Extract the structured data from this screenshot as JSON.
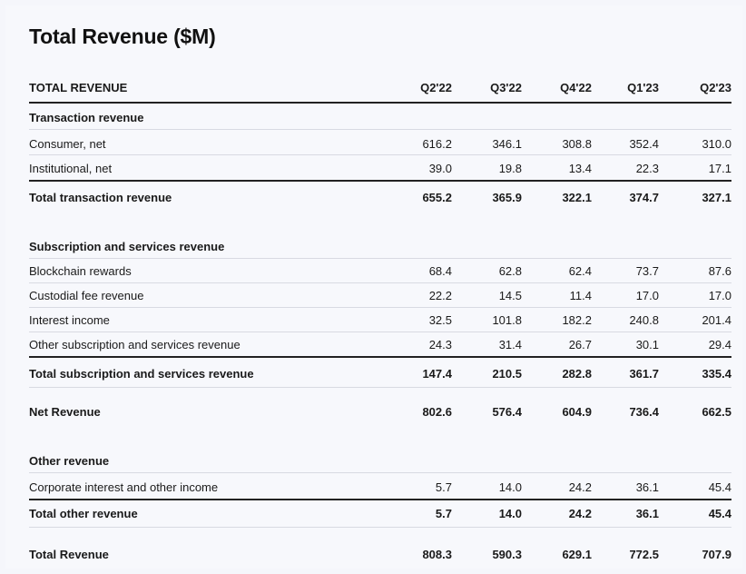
{
  "title": "Total Revenue ($M)",
  "header": {
    "label": "TOTAL REVENUE",
    "periods": [
      "Q2'22",
      "Q3'22",
      "Q4'22",
      "Q1'23",
      "Q2'23"
    ]
  },
  "sections": {
    "transaction": {
      "heading": "Transaction revenue",
      "rows": [
        {
          "label": "Consumer, net",
          "values": [
            "616.2",
            "346.1",
            "308.8",
            "352.4",
            "310.0"
          ]
        },
        {
          "label": "Institutional, net",
          "values": [
            "39.0",
            "19.8",
            "13.4",
            "22.3",
            "17.1"
          ]
        }
      ],
      "total": {
        "label": "Total transaction revenue",
        "values": [
          "655.2",
          "365.9",
          "322.1",
          "374.7",
          "327.1"
        ]
      }
    },
    "subscription": {
      "heading": "Subscription and services revenue",
      "rows": [
        {
          "label": "Blockchain rewards",
          "values": [
            "68.4",
            "62.8",
            "62.4",
            "73.7",
            "87.6"
          ]
        },
        {
          "label": "Custodial fee revenue",
          "values": [
            "22.2",
            "14.5",
            "11.4",
            "17.0",
            "17.0"
          ]
        },
        {
          "label": "Interest income",
          "values": [
            "32.5",
            "101.8",
            "182.2",
            "240.8",
            "201.4"
          ]
        },
        {
          "label": "Other subscription and services revenue",
          "values": [
            "24.3",
            "31.4",
            "26.7",
            "30.1",
            "29.4"
          ]
        }
      ],
      "total": {
        "label": "Total subscription and services revenue",
        "values": [
          "147.4",
          "210.5",
          "282.8",
          "361.7",
          "335.4"
        ]
      }
    },
    "net": {
      "label": "Net Revenue",
      "values": [
        "802.6",
        "576.4",
        "604.9",
        "736.4",
        "662.5"
      ]
    },
    "other": {
      "heading": "Other revenue",
      "rows": [
        {
          "label": "Corporate interest and other income",
          "values": [
            "5.7",
            "14.0",
            "24.2",
            "36.1",
            "45.4"
          ]
        }
      ],
      "total": {
        "label": "Total other revenue",
        "values": [
          "5.7",
          "14.0",
          "24.2",
          "36.1",
          "45.4"
        ]
      }
    },
    "grand_total": {
      "label": "Total Revenue",
      "values": [
        "808.3",
        "590.3",
        "629.1",
        "772.5",
        "707.9"
      ]
    }
  }
}
